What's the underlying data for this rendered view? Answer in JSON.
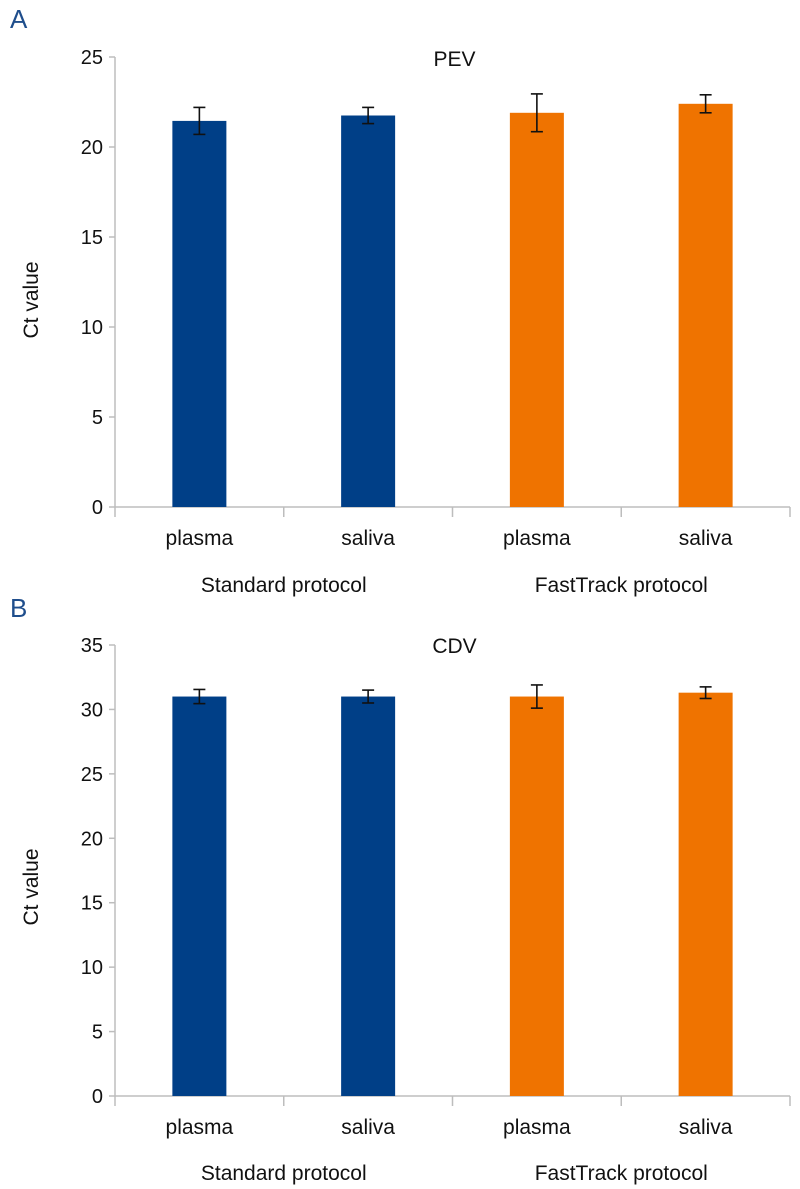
{
  "chart_data": [
    {
      "type": "bar",
      "panel_label": "A",
      "title": "PEV",
      "ylabel": "Ct value",
      "ylim": [
        0,
        25
      ],
      "yticks": [
        0,
        5,
        10,
        15,
        20,
        25
      ],
      "categories": [
        "plasma",
        "saliva",
        "plasma",
        "saliva"
      ],
      "groups": [
        {
          "label": "Standard protocol",
          "categories": [
            0,
            1
          ]
        },
        {
          "label": "FastTrack protocol",
          "categories": [
            2,
            3
          ]
        }
      ],
      "values": [
        21.45,
        21.75,
        21.9,
        22.4
      ],
      "error": [
        0.75,
        0.45,
        1.05,
        0.5
      ],
      "colors": [
        "#003f87",
        "#003f87",
        "#ef7300",
        "#ef7300"
      ],
      "grid": false,
      "legend": "none"
    },
    {
      "type": "bar",
      "panel_label": "B",
      "title": "CDV",
      "ylabel": "Ct value",
      "ylim": [
        0,
        35
      ],
      "yticks": [
        0,
        5,
        10,
        15,
        20,
        25,
        30,
        35
      ],
      "categories": [
        "plasma",
        "saliva",
        "plasma",
        "saliva"
      ],
      "groups": [
        {
          "label": "Standard protocol",
          "categories": [
            0,
            1
          ]
        },
        {
          "label": "FastTrack protocol",
          "categories": [
            2,
            3
          ]
        }
      ],
      "values": [
        31.0,
        31.0,
        31.0,
        31.3
      ],
      "error": [
        0.55,
        0.5,
        0.9,
        0.45
      ],
      "colors": [
        "#003f87",
        "#003f87",
        "#ef7300",
        "#ef7300"
      ],
      "grid": false,
      "legend": "none"
    }
  ],
  "panel_label_color": "#1f4e8c",
  "axis_color": "#bdbdbd"
}
